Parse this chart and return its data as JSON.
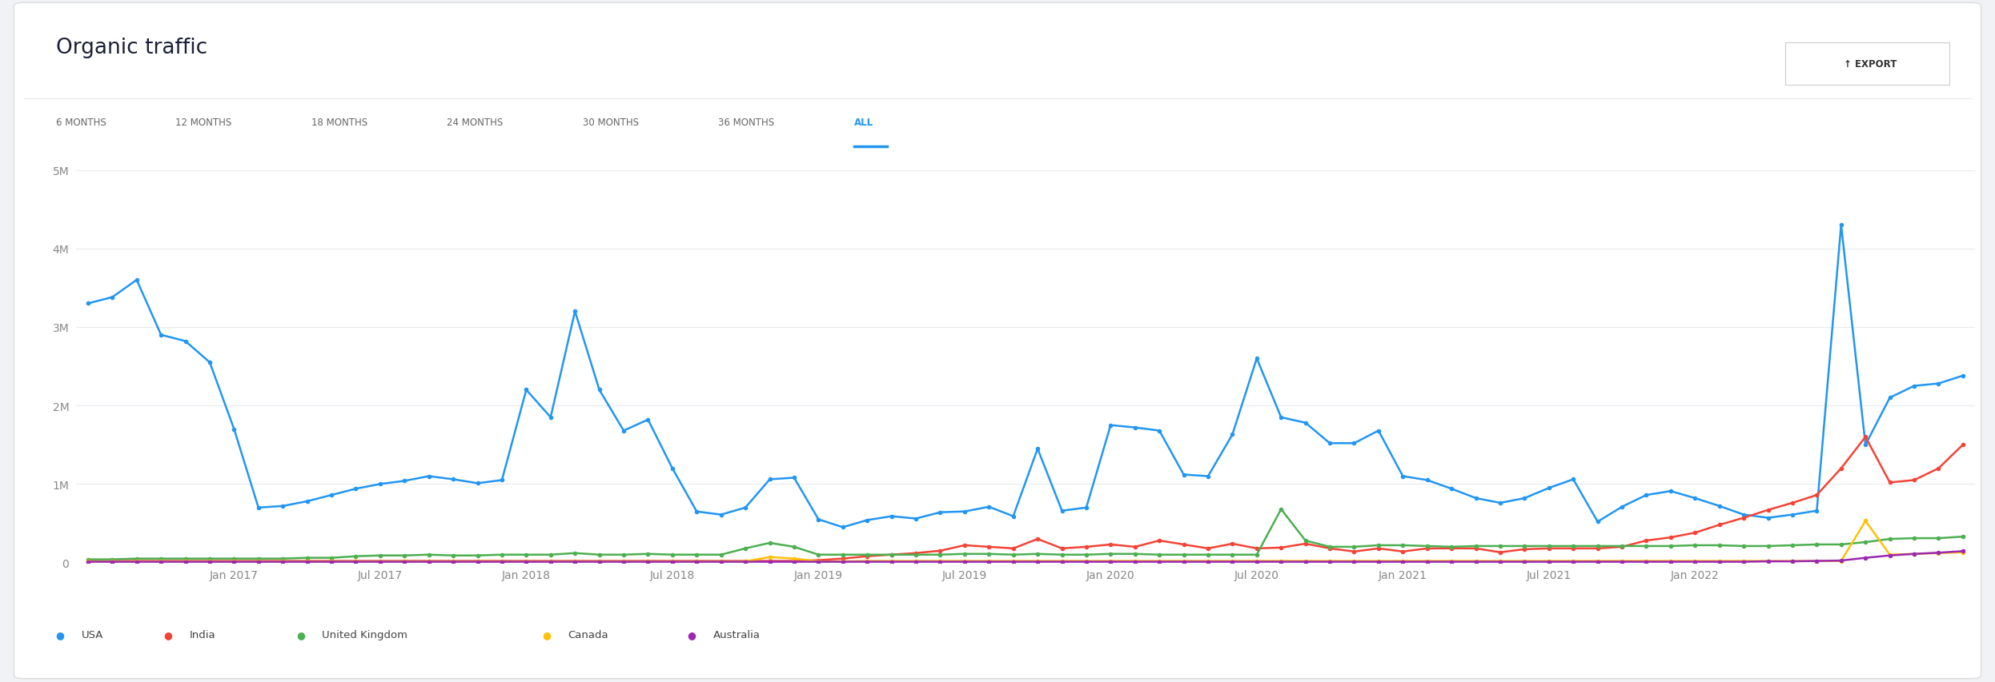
{
  "title": "Organic traffic",
  "export_button": "EXPORT",
  "tabs": [
    "6 MONTHS",
    "12 MONTHS",
    "18 MONTHS",
    "24 MONTHS",
    "30 MONTHS",
    "36 MONTHS",
    "ALL"
  ],
  "active_tab": "ALL",
  "outer_bg": "#f0f2f5",
  "card_bg": "#ffffff",
  "chart_bg": "#ffffff",
  "ylim": [
    0,
    5000000
  ],
  "yticks": [
    0,
    1000000,
    2000000,
    3000000,
    4000000,
    5000000
  ],
  "ytick_labels": [
    "0",
    "1M",
    "2M",
    "3M",
    "4M",
    "5M"
  ],
  "series": {
    "USA": {
      "color": "#2196f3",
      "marker": "o",
      "markersize": 4,
      "linewidth": 1.8,
      "data": [
        3300000,
        3380000,
        3600000,
        2900000,
        2820000,
        2550000,
        1700000,
        700000,
        720000,
        780000,
        860000,
        940000,
        1000000,
        1040000,
        1100000,
        1060000,
        1010000,
        1050000,
        2200000,
        1850000,
        3200000,
        2200000,
        1680000,
        1820000,
        1200000,
        650000,
        610000,
        700000,
        1060000,
        1080000,
        550000,
        450000,
        540000,
        590000,
        560000,
        640000,
        650000,
        710000,
        590000,
        1450000,
        660000,
        700000,
        1750000,
        1720000,
        1680000,
        1120000,
        1100000,
        1630000,
        2600000,
        1850000,
        1780000,
        1520000,
        1520000,
        1680000,
        1100000,
        1050000,
        940000,
        820000,
        760000,
        820000,
        950000,
        1060000,
        520000,
        710000,
        860000,
        910000,
        820000,
        720000,
        610000,
        570000,
        610000,
        660000,
        4300000,
        1500000,
        2100000,
        2250000,
        2280000,
        2380000
      ]
    },
    "India": {
      "color": "#f44336",
      "marker": "o",
      "markersize": 4,
      "linewidth": 1.8,
      "data": [
        20000,
        20000,
        20000,
        20000,
        20000,
        20000,
        20000,
        20000,
        20000,
        20000,
        20000,
        20000,
        20000,
        20000,
        20000,
        20000,
        20000,
        20000,
        20000,
        20000,
        20000,
        20000,
        20000,
        20000,
        20000,
        20000,
        20000,
        20000,
        20000,
        20000,
        30000,
        50000,
        80000,
        100000,
        120000,
        150000,
        220000,
        200000,
        180000,
        300000,
        180000,
        200000,
        230000,
        200000,
        280000,
        230000,
        180000,
        240000,
        180000,
        190000,
        240000,
        180000,
        140000,
        180000,
        140000,
        180000,
        180000,
        180000,
        130000,
        170000,
        180000,
        180000,
        180000,
        200000,
        280000,
        320000,
        380000,
        480000,
        570000,
        670000,
        760000,
        860000,
        1200000,
        1600000,
        1020000,
        1050000,
        1200000,
        1500000
      ]
    },
    "United Kingdom": {
      "color": "#4caf50",
      "marker": "o",
      "markersize": 4,
      "linewidth": 1.8,
      "data": [
        40000,
        40000,
        50000,
        50000,
        50000,
        50000,
        50000,
        50000,
        50000,
        60000,
        60000,
        80000,
        90000,
        90000,
        100000,
        90000,
        90000,
        100000,
        100000,
        100000,
        120000,
        100000,
        100000,
        110000,
        100000,
        100000,
        100000,
        180000,
        250000,
        200000,
        100000,
        100000,
        100000,
        100000,
        100000,
        100000,
        110000,
        110000,
        100000,
        110000,
        100000,
        100000,
        110000,
        110000,
        100000,
        100000,
        100000,
        100000,
        100000,
        680000,
        280000,
        200000,
        200000,
        220000,
        220000,
        210000,
        200000,
        210000,
        210000,
        210000,
        210000,
        210000,
        210000,
        210000,
        210000,
        210000,
        220000,
        220000,
        210000,
        210000,
        220000,
        230000,
        230000,
        260000,
        300000,
        310000,
        310000,
        330000
      ]
    },
    "Canada": {
      "color": "#ffc107",
      "marker": "o",
      "markersize": 4,
      "linewidth": 1.8,
      "data": [
        15000,
        15000,
        15000,
        15000,
        15000,
        15000,
        15000,
        15000,
        15000,
        15000,
        15000,
        15000,
        15000,
        15000,
        15000,
        15000,
        15000,
        15000,
        15000,
        15000,
        15000,
        15000,
        15000,
        15000,
        15000,
        15000,
        15000,
        15000,
        70000,
        50000,
        15000,
        15000,
        20000,
        20000,
        20000,
        20000,
        20000,
        20000,
        20000,
        20000,
        20000,
        20000,
        20000,
        20000,
        20000,
        20000,
        20000,
        20000,
        20000,
        20000,
        20000,
        20000,
        20000,
        20000,
        20000,
        20000,
        20000,
        20000,
        20000,
        20000,
        20000,
        20000,
        20000,
        20000,
        20000,
        20000,
        20000,
        20000,
        20000,
        20000,
        20000,
        20000,
        20000,
        530000,
        100000,
        110000,
        120000,
        130000
      ]
    },
    "Australia": {
      "color": "#9c27b0",
      "marker": "o",
      "markersize": 4,
      "linewidth": 1.8,
      "data": [
        10000,
        10000,
        10000,
        10000,
        10000,
        10000,
        10000,
        10000,
        10000,
        10000,
        10000,
        10000,
        10000,
        10000,
        10000,
        10000,
        10000,
        10000,
        10000,
        10000,
        10000,
        10000,
        10000,
        10000,
        10000,
        10000,
        10000,
        10000,
        10000,
        10000,
        10000,
        10000,
        10000,
        10000,
        10000,
        10000,
        10000,
        10000,
        10000,
        10000,
        10000,
        10000,
        10000,
        10000,
        10000,
        10000,
        10000,
        10000,
        10000,
        10000,
        10000,
        10000,
        10000,
        10000,
        10000,
        10000,
        10000,
        10000,
        10000,
        10000,
        10000,
        10000,
        10000,
        10000,
        10000,
        10000,
        10000,
        10000,
        10000,
        15000,
        15000,
        20000,
        25000,
        60000,
        90000,
        110000,
        125000,
        145000
      ]
    }
  },
  "x_tick_labels": [
    "Jan 2017",
    "Jul 2017",
    "Jan 2018",
    "Jul 2018",
    "Jan 2019",
    "Jul 2019",
    "Jan 2020",
    "Jul 2020",
    "Jan 2021",
    "Jul 2021",
    "Jan 2022"
  ],
  "x_tick_positions": [
    6,
    12,
    18,
    24,
    30,
    36,
    42,
    48,
    54,
    60,
    66
  ],
  "legend": [
    "USA",
    "India",
    "United Kingdom",
    "Canada",
    "Australia"
  ]
}
